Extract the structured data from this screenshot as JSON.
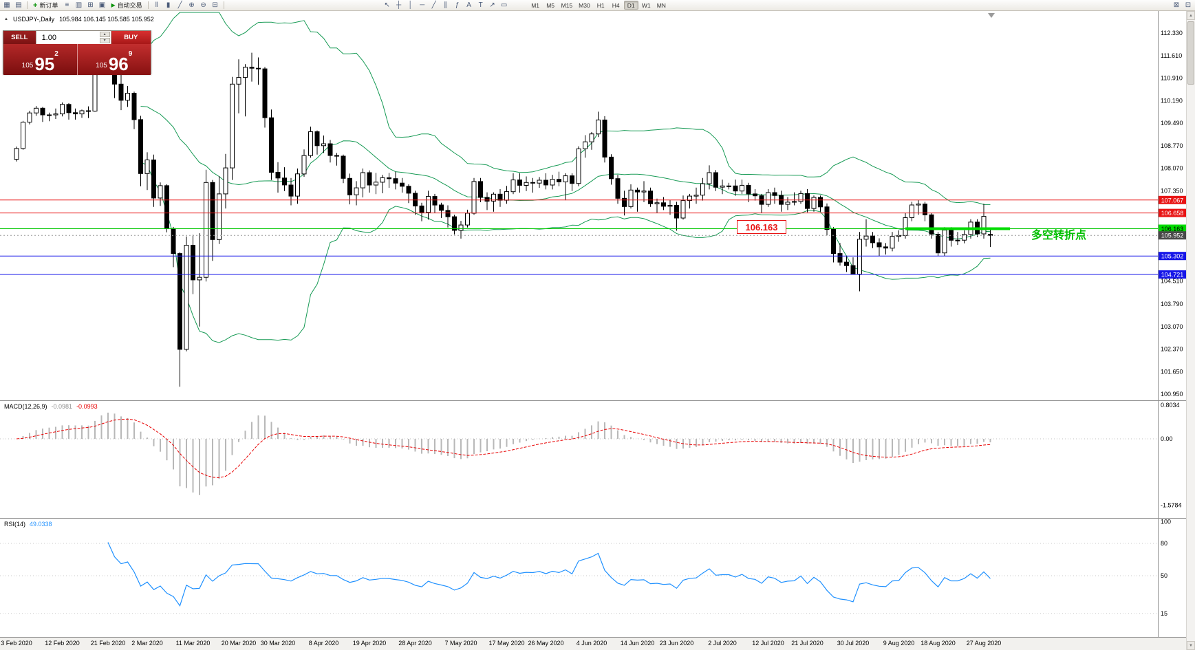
{
  "toolbar": {
    "file_icons": [
      {
        "name": "new-chart-icon",
        "glyph": "▦"
      },
      {
        "name": "chart-profiles-icon",
        "glyph": "▤"
      }
    ],
    "new_order": {
      "label": "新订单"
    },
    "window_icons": [
      {
        "name": "market-watch-icon",
        "glyph": "≡"
      },
      {
        "name": "data-window-icon",
        "glyph": "▥"
      },
      {
        "name": "navigator-icon",
        "glyph": "⊞"
      },
      {
        "name": "terminal-icon",
        "glyph": "▣"
      }
    ],
    "autotrade": {
      "label": "自动交易"
    },
    "chart_type_icons": [
      {
        "name": "bar-chart-icon",
        "glyph": "‖"
      },
      {
        "name": "candlestick-chart-icon",
        "glyph": "▮"
      },
      {
        "name": "line-chart-icon",
        "glyph": "╱"
      }
    ],
    "zoom_icons": [
      {
        "name": "zoom-in-icon",
        "glyph": "⊕"
      },
      {
        "name": "zoom-out-icon",
        "glyph": "⊖"
      },
      {
        "name": "tile-windows-icon",
        "glyph": "⊟"
      }
    ],
    "cursor_icons": [
      {
        "name": "cursor-icon",
        "glyph": "↖"
      },
      {
        "name": "crosshair-icon",
        "glyph": "┼"
      }
    ],
    "draw_icons": [
      {
        "name": "vertical-line-icon",
        "glyph": "│"
      },
      {
        "name": "horizontal-line-icon",
        "glyph": "─"
      },
      {
        "name": "trendline-icon",
        "glyph": "╱"
      },
      {
        "name": "channel-icon",
        "glyph": "∥"
      },
      {
        "name": "fibonacci-icon",
        "glyph": "ƒ"
      },
      {
        "name": "text-icon",
        "glyph": "A"
      },
      {
        "name": "label-icon",
        "glyph": "T"
      },
      {
        "name": "arrow-tools-icon",
        "glyph": "↗"
      },
      {
        "name": "shapes-icon",
        "glyph": "▭"
      }
    ],
    "timeframes": [
      "M1",
      "M5",
      "M15",
      "M30",
      "H1",
      "H4",
      "D1",
      "W1",
      "MN"
    ],
    "active_timeframe": "D1",
    "right_icons": [
      {
        "name": "chart-list-icon",
        "glyph": "⊠"
      },
      {
        "name": "full-screen-icon",
        "glyph": "⊡"
      }
    ]
  },
  "trade_panel": {
    "sell_label": "SELL",
    "buy_label": "BUY",
    "volume": "1.00",
    "sell_price": {
      "small": "105",
      "big": "95",
      "sup": "2"
    },
    "buy_price": {
      "small": "105",
      "big": "96",
      "sup": "9"
    }
  },
  "chart": {
    "symbol_title": "USDJPY-,Daily",
    "ohlc_text": "105.984 106.145 105.585 105.952"
  },
  "annotations": {
    "price_label": "106.163",
    "turning_point_label": "多空转折点"
  },
  "levels": [
    {
      "price": 107.067,
      "color": "#e81414"
    },
    {
      "price": 106.658,
      "color": "#e81414"
    },
    {
      "price": 106.163,
      "color": "#00c800"
    },
    {
      "price": 105.302,
      "color": "#1616e8"
    },
    {
      "price": 104.721,
      "color": "#1616e8"
    }
  ],
  "current_price": 105.952,
  "objects": {
    "trend_segment": {
      "price": 106.163,
      "from_index": 136,
      "to_index": 152,
      "color": "#00dc00"
    }
  },
  "price_axis": {
    "labels": [
      "112.330",
      "111.610",
      "110.910",
      "110.190",
      "109.490",
      "108.770",
      "108.070",
      "107.350",
      "104.510",
      "103.790",
      "103.070",
      "102.370",
      "101.650",
      "100.950"
    ],
    "badges": [
      {
        "value": "107.067",
        "bg": "#e81414",
        "fg": "#ffffff"
      },
      {
        "value": "106.658",
        "bg": "#e81414",
        "fg": "#ffffff"
      },
      {
        "value": "106.163",
        "bg": "#00dc00",
        "fg": "#000000"
      },
      {
        "value": "105.302",
        "bg": "#1616e8",
        "fg": "#ffffff"
      },
      {
        "value": "104.721",
        "bg": "#1616e8",
        "fg": "#ffffff"
      },
      {
        "value": "105.952",
        "bg": "#484848",
        "fg": "#ffffff"
      }
    ]
  },
  "indicators": {
    "macd": {
      "title": "MACD(12,26,9)",
      "value1": "-0.0981",
      "value2": "-0.0993",
      "axis": [
        "0.8034",
        "0.00",
        "-1.5784"
      ]
    },
    "rsi": {
      "title": "RSI(14)",
      "value": "49.0338",
      "axis": [
        "100",
        "80",
        "50",
        "15"
      ],
      "levels": [
        80,
        50,
        15
      ]
    }
  },
  "colors": {
    "bollinger": "#169a54",
    "macd_histogram": "#b8b8b8",
    "macd_signal": "#e80000",
    "rsi_line": "#1e90ff",
    "candle_up": "#ffffff",
    "candle_down": "#000000",
    "candle_border": "#000000",
    "trend_segment": "#00dc00",
    "annotation_green": "#00c000",
    "sell_button": "#8c1616",
    "buy_button": "#d01f1f"
  },
  "chart_data": {
    "type": "candlestick",
    "symbol": "USDJPY",
    "timeframe": "Daily",
    "price_range_visible": [
      100.76,
      113.03
    ],
    "date_labels": [
      {
        "t": "3 Feb 2020",
        "i": 0
      },
      {
        "t": "12 Feb 2020",
        "i": 7
      },
      {
        "t": "21 Feb 2020",
        "i": 14
      },
      {
        "t": "2 Mar 2020",
        "i": 20
      },
      {
        "t": "11 Mar 2020",
        "i": 27
      },
      {
        "t": "20 Mar 2020",
        "i": 34
      },
      {
        "t": "30 Mar 2020",
        "i": 40
      },
      {
        "t": "8 Apr 2020",
        "i": 47
      },
      {
        "t": "19 Apr 2020",
        "i": 54
      },
      {
        "t": "28 Apr 2020",
        "i": 61
      },
      {
        "t": "7 May 2020",
        "i": 68
      },
      {
        "t": "17 May 2020",
        "i": 75
      },
      {
        "t": "26 May 2020",
        "i": 81
      },
      {
        "t": "4 Jun 2020",
        "i": 88
      },
      {
        "t": "14 Jun 2020",
        "i": 95
      },
      {
        "t": "23 Jun 2020",
        "i": 101
      },
      {
        "t": "2 Jul 2020",
        "i": 108
      },
      {
        "t": "12 Jul 2020",
        "i": 115
      },
      {
        "t": "21 Jul 2020",
        "i": 121
      },
      {
        "t": "30 Jul 2020",
        "i": 128
      },
      {
        "t": "9 Aug 2020",
        "i": 135
      },
      {
        "t": "18 Aug 2020",
        "i": 141
      },
      {
        "t": "27 Aug 2020",
        "i": 148
      }
    ],
    "ohlc": [
      [
        108.35,
        108.75,
        108.28,
        108.69
      ],
      [
        108.69,
        109.56,
        108.65,
        109.52
      ],
      [
        109.52,
        109.88,
        109.45,
        109.81
      ],
      [
        109.81,
        110.03,
        109.72,
        109.96
      ],
      [
        109.96,
        110.0,
        109.53,
        109.75
      ],
      [
        109.75,
        109.82,
        109.55,
        109.75
      ],
      [
        109.75,
        109.95,
        109.62,
        109.78
      ],
      [
        109.78,
        110.14,
        109.7,
        110.08
      ],
      [
        110.08,
        110.12,
        109.6,
        109.82
      ],
      [
        109.82,
        109.95,
        109.6,
        109.78
      ],
      [
        109.78,
        109.92,
        109.66,
        109.88
      ],
      [
        109.88,
        110.02,
        109.65,
        109.87
      ],
      [
        109.87,
        111.42,
        109.85,
        111.35
      ],
      [
        111.35,
        112.1,
        111.1,
        111.95
      ],
      [
        111.95,
        112.02,
        111.3,
        111.58
      ],
      [
        111.58,
        111.62,
        110.28,
        110.72
      ],
      [
        110.72,
        111.02,
        109.9,
        110.21
      ],
      [
        110.21,
        110.66,
        110.0,
        110.43
      ],
      [
        110.43,
        110.48,
        109.3,
        109.6
      ],
      [
        109.6,
        109.72,
        107.5,
        107.9
      ],
      [
        107.9,
        108.57,
        107.38,
        108.33
      ],
      [
        108.33,
        108.5,
        106.85,
        107.13
      ],
      [
        107.13,
        107.62,
        106.88,
        107.52
      ],
      [
        107.52,
        107.56,
        106.05,
        106.17
      ],
      [
        106.17,
        106.22,
        104.95,
        105.38
      ],
      [
        105.38,
        105.42,
        101.18,
        102.36
      ],
      [
        102.36,
        105.92,
        102.3,
        105.64
      ],
      [
        105.64,
        105.97,
        104.1,
        104.55
      ],
      [
        104.55,
        106.02,
        103.08,
        104.63
      ],
      [
        104.63,
        108.02,
        104.5,
        107.62
      ],
      [
        107.62,
        107.7,
        105.15,
        105.82
      ],
      [
        105.82,
        107.82,
        105.68,
        107.26
      ],
      [
        107.26,
        108.52,
        106.8,
        108.08
      ],
      [
        108.08,
        110.95,
        107.7,
        110.72
      ],
      [
        110.72,
        111.5,
        109.8,
        110.93
      ],
      [
        110.93,
        111.35,
        109.7,
        111.25
      ],
      [
        111.25,
        111.71,
        110.8,
        111.22
      ],
      [
        111.22,
        111.56,
        110.7,
        111.2
      ],
      [
        111.2,
        111.26,
        109.35,
        109.66
      ],
      [
        109.66,
        109.92,
        107.7,
        107.94
      ],
      [
        107.94,
        108.26,
        107.3,
        107.76
      ],
      [
        107.76,
        108.1,
        107.35,
        107.54
      ],
      [
        107.54,
        107.76,
        106.9,
        107.19
      ],
      [
        107.19,
        108.06,
        106.95,
        107.89
      ],
      [
        107.89,
        108.66,
        107.8,
        108.47
      ],
      [
        108.47,
        109.38,
        108.4,
        109.22
      ],
      [
        109.22,
        109.26,
        108.5,
        108.78
      ],
      [
        108.78,
        109.1,
        108.55,
        108.84
      ],
      [
        108.84,
        108.96,
        108.25,
        108.47
      ],
      [
        108.47,
        108.55,
        108.15,
        108.45
      ],
      [
        108.45,
        108.5,
        107.6,
        107.75
      ],
      [
        107.75,
        107.9,
        106.93,
        107.23
      ],
      [
        107.23,
        107.66,
        106.9,
        107.45
      ],
      [
        107.45,
        108.06,
        107.15,
        107.93
      ],
      [
        107.93,
        108.0,
        107.3,
        107.54
      ],
      [
        107.54,
        107.92,
        107.25,
        107.63
      ],
      [
        107.63,
        107.86,
        107.28,
        107.77
      ],
      [
        107.77,
        107.92,
        107.45,
        107.74
      ],
      [
        107.74,
        107.96,
        107.4,
        107.6
      ],
      [
        107.6,
        107.76,
        107.3,
        107.5
      ],
      [
        107.5,
        107.56,
        106.97,
        107.28
      ],
      [
        107.28,
        107.36,
        106.6,
        106.88
      ],
      [
        106.88,
        106.98,
        106.4,
        106.68
      ],
      [
        106.68,
        107.36,
        106.45,
        107.18
      ],
      [
        107.18,
        107.26,
        106.65,
        106.91
      ],
      [
        106.91,
        106.98,
        106.5,
        106.74
      ],
      [
        106.74,
        106.9,
        106.2,
        106.54
      ],
      [
        106.54,
        106.6,
        105.98,
        106.11
      ],
      [
        106.11,
        106.41,
        105.85,
        106.28
      ],
      [
        106.28,
        106.76,
        106.2,
        106.65
      ],
      [
        106.65,
        107.76,
        106.6,
        107.65
      ],
      [
        107.65,
        107.76,
        107.0,
        107.15
      ],
      [
        107.15,
        107.31,
        106.75,
        107.03
      ],
      [
        107.03,
        107.31,
        106.7,
        107.25
      ],
      [
        107.25,
        107.41,
        106.85,
        107.06
      ],
      [
        107.06,
        107.51,
        106.95,
        107.33
      ],
      [
        107.33,
        107.91,
        107.25,
        107.7
      ],
      [
        107.7,
        107.91,
        107.3,
        107.53
      ],
      [
        107.53,
        107.81,
        107.35,
        107.62
      ],
      [
        107.62,
        107.76,
        107.3,
        107.6
      ],
      [
        107.6,
        107.79,
        107.45,
        107.69
      ],
      [
        107.69,
        107.91,
        107.4,
        107.54
      ],
      [
        107.54,
        107.86,
        107.4,
        107.72
      ],
      [
        107.72,
        107.96,
        107.5,
        107.64
      ],
      [
        107.64,
        107.91,
        107.06,
        107.83
      ],
      [
        107.83,
        107.91,
        107.35,
        107.59
      ],
      [
        107.59,
        108.76,
        107.5,
        108.68
      ],
      [
        108.68,
        109.11,
        108.4,
        108.9
      ],
      [
        108.9,
        109.21,
        108.65,
        109.15
      ],
      [
        109.15,
        109.85,
        109.05,
        109.59
      ],
      [
        109.59,
        109.71,
        108.25,
        108.42
      ],
      [
        108.42,
        108.51,
        107.55,
        107.74
      ],
      [
        107.74,
        107.86,
        106.95,
        107.12
      ],
      [
        107.12,
        107.36,
        106.58,
        106.86
      ],
      [
        106.86,
        107.56,
        106.8,
        107.38
      ],
      [
        107.38,
        107.46,
        106.7,
        107.32
      ],
      [
        107.32,
        107.66,
        107.0,
        107.35
      ],
      [
        107.35,
        107.46,
        106.85,
        106.95
      ],
      [
        106.95,
        107.11,
        106.65,
        106.98
      ],
      [
        106.98,
        107.16,
        106.75,
        106.87
      ],
      [
        106.87,
        107.06,
        106.6,
        106.9
      ],
      [
        106.9,
        107.01,
        106.1,
        106.5
      ],
      [
        106.5,
        107.21,
        106.45,
        107.05
      ],
      [
        107.05,
        107.26,
        106.8,
        107.19
      ],
      [
        107.19,
        107.46,
        106.95,
        107.22
      ],
      [
        107.22,
        107.76,
        107.05,
        107.58
      ],
      [
        107.58,
        108.16,
        107.4,
        107.93
      ],
      [
        107.93,
        108.01,
        107.35,
        107.47
      ],
      [
        107.47,
        107.71,
        107.25,
        107.51
      ],
      [
        107.51,
        107.61,
        107.4,
        107.51
      ],
      [
        107.51,
        107.71,
        107.2,
        107.35
      ],
      [
        107.35,
        107.71,
        107.25,
        107.53
      ],
      [
        107.53,
        107.61,
        107.0,
        107.26
      ],
      [
        107.26,
        107.41,
        107.05,
        107.2
      ],
      [
        107.2,
        107.26,
        106.65,
        106.93
      ],
      [
        106.93,
        107.41,
        106.85,
        107.3
      ],
      [
        107.3,
        107.46,
        106.95,
        107.21
      ],
      [
        107.21,
        107.36,
        106.7,
        106.93
      ],
      [
        106.93,
        107.16,
        106.75,
        107.0
      ],
      [
        107.0,
        107.31,
        106.9,
        107.02
      ],
      [
        107.02,
        107.36,
        106.95,
        107.27
      ],
      [
        107.27,
        107.41,
        106.68,
        106.8
      ],
      [
        106.8,
        107.21,
        106.7,
        107.15
      ],
      [
        107.15,
        107.21,
        106.7,
        106.85
      ],
      [
        106.85,
        106.96,
        105.95,
        106.14
      ],
      [
        106.14,
        106.21,
        105.1,
        105.38
      ],
      [
        105.38,
        105.71,
        105.0,
        105.11
      ],
      [
        105.11,
        105.31,
        104.8,
        105.0
      ],
      [
        105.0,
        105.26,
        104.72,
        104.73
      ],
      [
        104.73,
        106.06,
        104.19,
        105.83
      ],
      [
        105.83,
        106.46,
        105.6,
        105.93
      ],
      [
        105.93,
        106.06,
        105.55,
        105.72
      ],
      [
        105.72,
        105.86,
        105.3,
        105.59
      ],
      [
        105.59,
        105.71,
        105.35,
        105.55
      ],
      [
        105.55,
        106.06,
        105.45,
        105.92
      ],
      [
        105.92,
        106.11,
        105.75,
        105.95
      ],
      [
        105.95,
        106.66,
        105.85,
        106.51
      ],
      [
        106.51,
        107.01,
        106.4,
        106.91
      ],
      [
        106.91,
        107.06,
        106.6,
        106.94
      ],
      [
        106.94,
        107.01,
        106.4,
        106.6
      ],
      [
        106.6,
        106.66,
        105.85,
        105.99
      ],
      [
        105.99,
        106.06,
        105.3,
        105.4
      ],
      [
        105.4,
        106.21,
        105.3,
        106.12
      ],
      [
        106.12,
        106.21,
        105.6,
        105.8
      ],
      [
        105.8,
        106.06,
        105.65,
        105.8
      ],
      [
        105.8,
        106.11,
        105.7,
        105.98
      ],
      [
        105.98,
        106.46,
        105.85,
        106.37
      ],
      [
        106.37,
        106.46,
        105.9,
        106.0
      ],
      [
        106.0,
        106.95,
        105.85,
        106.55
      ],
      [
        105.984,
        106.145,
        105.585,
        105.952
      ]
    ]
  }
}
